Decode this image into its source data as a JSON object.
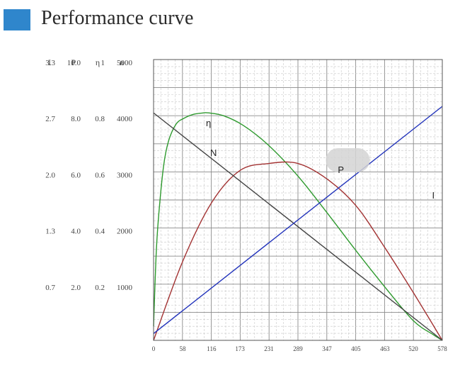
{
  "header": {
    "title": "Performance curve",
    "accent_color": "#2f86cc"
  },
  "chart_data": {
    "type": "line",
    "title": "Performance curve",
    "x_ticks": [
      "0",
      "58",
      "116",
      "173",
      "231",
      "289",
      "347",
      "405",
      "463",
      "520",
      "578"
    ],
    "xlim": [
      0,
      578
    ],
    "left_axes": {
      "headers": [
        "I",
        "P",
        "η",
        "n"
      ],
      "rows": [
        [
          "3.3",
          "10.0",
          "1",
          "5000"
        ],
        [
          "2.7",
          "8.0",
          "0.8",
          "4000"
        ],
        [
          "2.0",
          "6.0",
          "0.6",
          "3000"
        ],
        [
          "1.3",
          "4.0",
          "0.4",
          "2000"
        ],
        [
          "0.7",
          "2.0",
          "0.2",
          "1000"
        ]
      ],
      "row_values_n": [
        5000,
        4000,
        3000,
        2000,
        1000
      ]
    },
    "ylim_n": [
      0,
      5000
    ],
    "series": [
      {
        "name": "η",
        "color": "#2e9a2e",
        "x": [
          0,
          5,
          10,
          20,
          30,
          45,
          60,
          80,
          100,
          110,
          140,
          180,
          230,
          289,
          347,
          405,
          463,
          520,
          560,
          578
        ],
        "values": [
          0.05,
          0.3,
          0.44,
          0.62,
          0.71,
          0.77,
          0.79,
          0.805,
          0.81,
          0.81,
          0.8,
          0.765,
          0.695,
          0.585,
          0.455,
          0.32,
          0.19,
          0.07,
          0.02,
          0.0
        ]
      },
      {
        "name": "P",
        "color": "#a33333",
        "x": [
          0,
          58,
          116,
          173,
          231,
          289,
          347,
          405,
          463,
          520,
          578
        ],
        "values": [
          0.0,
          2.8,
          4.9,
          6.05,
          6.3,
          6.3,
          5.75,
          4.8,
          3.3,
          1.7,
          0.0
        ]
      },
      {
        "name": "N",
        "color": "#444444",
        "x": [
          0,
          578
        ],
        "values": [
          4050,
          0
        ]
      },
      {
        "name": "I",
        "color": "#2233bb",
        "x": [
          0,
          578
        ],
        "values": [
          0.08,
          2.75
        ]
      }
    ],
    "grid": true
  }
}
